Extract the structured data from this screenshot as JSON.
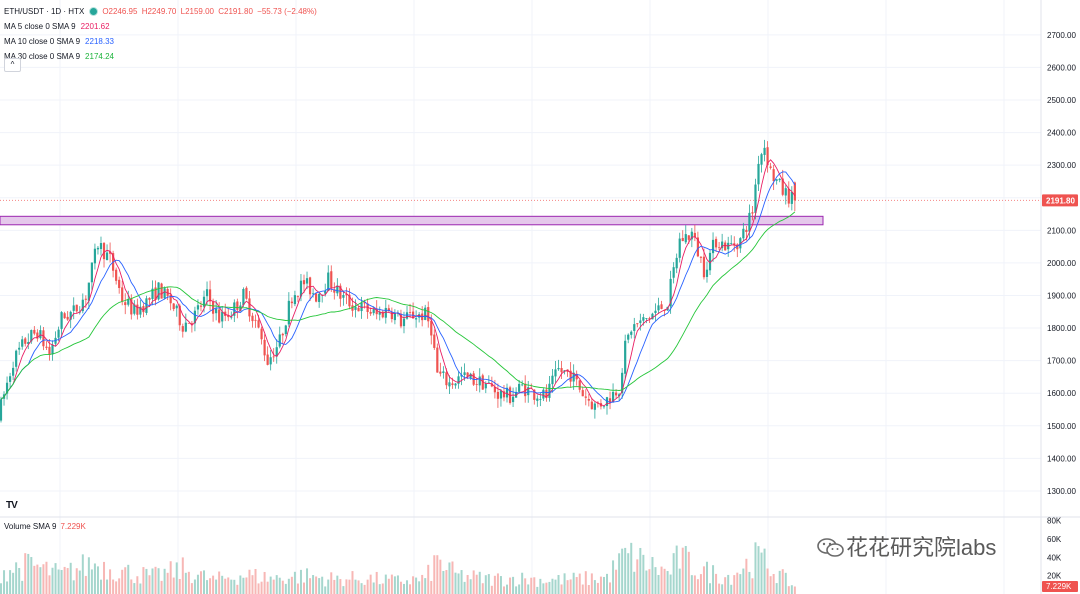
{
  "legend": {
    "symbol": "ETH/USDT · 1D · HTX",
    "ohlc": {
      "o": "O2246.95",
      "h": "H2249.70",
      "l": "L2159.00",
      "c": "C2191.80",
      "change": "−55.73 (−2.48%)"
    },
    "ma5": {
      "label": "MA 5 close 0 SMA 9",
      "value": "2201.62",
      "color": "#e91e63"
    },
    "ma10": {
      "label": "MA 10 close 0 SMA 9",
      "value": "2218.33",
      "color": "#2962ff"
    },
    "ma30": {
      "label": "MA 30 close 0 SMA 9",
      "value": "2174.24",
      "color": "#26c63a"
    },
    "collapse": "^"
  },
  "volume_legend": {
    "label": "Volume SMA 9",
    "value": "7.229K"
  },
  "tv_logo": "TV",
  "watermark": "花花研究院labs",
  "colors": {
    "up": "#26a69a",
    "down": "#ef5350",
    "zone_fill": "#e1bee7",
    "zone_border": "#9c27b0",
    "grid": "#f0f3fa",
    "price_line": "#ef5350"
  },
  "chart_data": {
    "type": "candlestick",
    "symbol": "ETH/USDT",
    "interval": "1D",
    "exchange": "HTX",
    "last_price": 2191.8,
    "last_price_label": "2191.80",
    "y_axis_ticks": [
      "2700.00",
      "2600.00",
      "2500.00",
      "2400.00",
      "2300.00",
      "2200.00",
      "2100.00",
      "2000.00",
      "1900.00",
      "1800.00",
      "1700.00",
      "1600.00",
      "1500.00",
      "1400.00",
      "1300.00"
    ],
    "ylim": [
      1220,
      2807
    ],
    "volume_axis_ticks": [
      "80K",
      "60K",
      "40K",
      "20K"
    ],
    "volume_ylim": [
      0,
      84000
    ],
    "current_volume_label": "7.229K",
    "zone": {
      "low": 2117,
      "high": 2143
    },
    "waypoints": [
      [
        0,
        1560
      ],
      [
        4,
        1700
      ],
      [
        8,
        1760
      ],
      [
        12,
        1790
      ],
      [
        16,
        1720
      ],
      [
        20,
        1830
      ],
      [
        24,
        1850
      ],
      [
        28,
        1900
      ],
      [
        32,
        2060
      ],
      [
        36,
        2010
      ],
      [
        40,
        1890
      ],
      [
        44,
        1850
      ],
      [
        48,
        1880
      ],
      [
        52,
        1920
      ],
      [
        56,
        1880
      ],
      [
        60,
        1810
      ],
      [
        64,
        1840
      ],
      [
        68,
        1900
      ],
      [
        72,
        1830
      ],
      [
        76,
        1850
      ],
      [
        80,
        1900
      ],
      [
        84,
        1820
      ],
      [
        88,
        1700
      ],
      [
        92,
        1760
      ],
      [
        96,
        1900
      ],
      [
        100,
        1940
      ],
      [
        104,
        1900
      ],
      [
        108,
        1950
      ],
      [
        112,
        1900
      ],
      [
        116,
        1870
      ],
      [
        120,
        1860
      ],
      [
        124,
        1840
      ],
      [
        128,
        1860
      ],
      [
        132,
        1820
      ],
      [
        136,
        1840
      ],
      [
        140,
        1840
      ],
      [
        142,
        1800
      ],
      [
        144,
        1660
      ],
      [
        148,
        1630
      ],
      [
        152,
        1650
      ],
      [
        156,
        1640
      ],
      [
        160,
        1630
      ],
      [
        164,
        1600
      ],
      [
        168,
        1590
      ],
      [
        172,
        1620
      ],
      [
        176,
        1600
      ],
      [
        180,
        1590
      ],
      [
        184,
        1670
      ],
      [
        188,
        1660
      ],
      [
        192,
        1600
      ],
      [
        196,
        1560
      ],
      [
        200,
        1580
      ],
      [
        204,
        1620
      ],
      [
        206,
        1740
      ],
      [
        208,
        1800
      ],
      [
        212,
        1820
      ],
      [
        216,
        1850
      ],
      [
        220,
        1880
      ],
      [
        224,
        2070
      ],
      [
        228,
        2090
      ],
      [
        232,
        1980
      ],
      [
        236,
        2070
      ],
      [
        240,
        2050
      ],
      [
        244,
        2070
      ],
      [
        248,
        2160
      ],
      [
        250,
        2320
      ],
      [
        252,
        2360
      ],
      [
        254,
        2280
      ],
      [
        256,
        2250
      ],
      [
        258,
        2220
      ],
      [
        262,
        2190
      ]
    ],
    "volume_waypoints": [
      [
        0,
        26000
      ],
      [
        10,
        33000
      ],
      [
        20,
        22000
      ],
      [
        30,
        35000
      ],
      [
        40,
        26000
      ],
      [
        50,
        20000
      ],
      [
        60,
        28000
      ],
      [
        70,
        16000
      ],
      [
        80,
        22000
      ],
      [
        90,
        18000
      ],
      [
        100,
        21000
      ],
      [
        110,
        17000
      ],
      [
        120,
        18000
      ],
      [
        130,
        15000
      ],
      [
        140,
        17000
      ],
      [
        144,
        38000
      ],
      [
        150,
        22000
      ],
      [
        160,
        17000
      ],
      [
        170,
        18000
      ],
      [
        180,
        16000
      ],
      [
        190,
        17000
      ],
      [
        200,
        19000
      ],
      [
        206,
        44000
      ],
      [
        210,
        40000
      ],
      [
        220,
        24000
      ],
      [
        224,
        42000
      ],
      [
        230,
        28000
      ],
      [
        240,
        20000
      ],
      [
        250,
        42000
      ],
      [
        256,
        24000
      ],
      [
        262,
        8000
      ]
    ],
    "ma_series": [
      {
        "name": "MA 5",
        "period": 5,
        "color": "#e91e63"
      },
      {
        "name": "MA 10",
        "period": 10,
        "color": "#2962ff"
      },
      {
        "name": "MA 30",
        "period": 30,
        "color": "#26c63a"
      }
    ]
  }
}
